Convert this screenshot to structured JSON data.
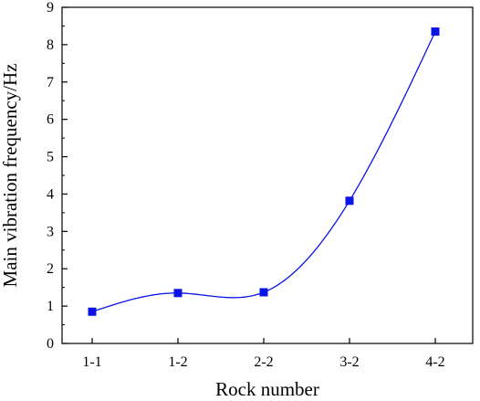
{
  "chart_data": {
    "type": "line",
    "categories": [
      "1-1",
      "1-2",
      "2-2",
      "3-2",
      "4-2"
    ],
    "values": [
      0.85,
      1.35,
      1.37,
      3.82,
      8.35
    ],
    "xlabel": "Rock number",
    "ylabel": "Main vibration frequency/Hz",
    "ylim": [
      0,
      9
    ],
    "yticks": [
      0,
      1,
      2,
      3,
      4,
      5,
      6,
      7,
      8,
      9
    ],
    "line_style": "smooth spline",
    "marker": "square",
    "colors": {
      "series": "#0a14e6",
      "axis": "#000000"
    },
    "grid": false,
    "legend": "none"
  }
}
